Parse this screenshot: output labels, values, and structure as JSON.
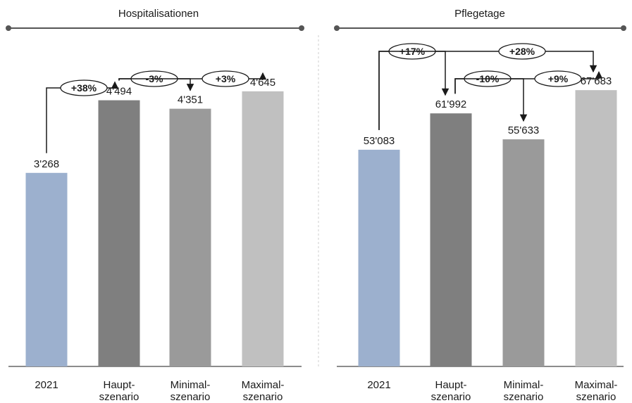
{
  "colors": {
    "c2021": "#9cb0ce",
    "haupt": "#7f7f7f",
    "minimal": "#9a9a9a",
    "maximal": "#c0c0c0",
    "rule": "#555555",
    "text": "#1a1a1a"
  },
  "chart_data": [
    {
      "type": "bar",
      "title": "Hospitalisationen",
      "categories": [
        [
          "2021"
        ],
        [
          "Haupt-",
          "szenario"
        ],
        [
          "Minimal-",
          "szenario"
        ],
        [
          "Maximal-",
          "szenario"
        ]
      ],
      "values": [
        3268,
        4494,
        4351,
        4645
      ],
      "value_labels": [
        "3'268",
        "4'494",
        "4'351",
        "4'645"
      ],
      "ylim": [
        0,
        5700
      ],
      "annotations": [
        {
          "label": "+38%",
          "from": 0,
          "to": 1
        },
        {
          "label": "-3%",
          "from": 1,
          "to": 2
        },
        {
          "label": "+3%",
          "from": 1,
          "to": 3
        }
      ]
    },
    {
      "type": "bar",
      "title": "Pflegetage",
      "categories": [
        [
          "2021"
        ],
        [
          "Haupt-",
          "szenario"
        ],
        [
          "Minimal-",
          "szenario"
        ],
        [
          "Maximal-",
          "szenario"
        ]
      ],
      "values": [
        53083,
        61992,
        55633,
        67683
      ],
      "value_labels": [
        "53'083",
        "61'992",
        "55'633",
        "67'683"
      ],
      "ylim": [
        0,
        82700
      ],
      "annotations": [
        {
          "label": "+17%",
          "from": 0,
          "to": 1
        },
        {
          "label": "+28%",
          "from": 0,
          "to": 3
        },
        {
          "label": "-10%",
          "from": 1,
          "to": 2
        },
        {
          "label": "+9%",
          "from": 1,
          "to": 3
        }
      ]
    }
  ]
}
